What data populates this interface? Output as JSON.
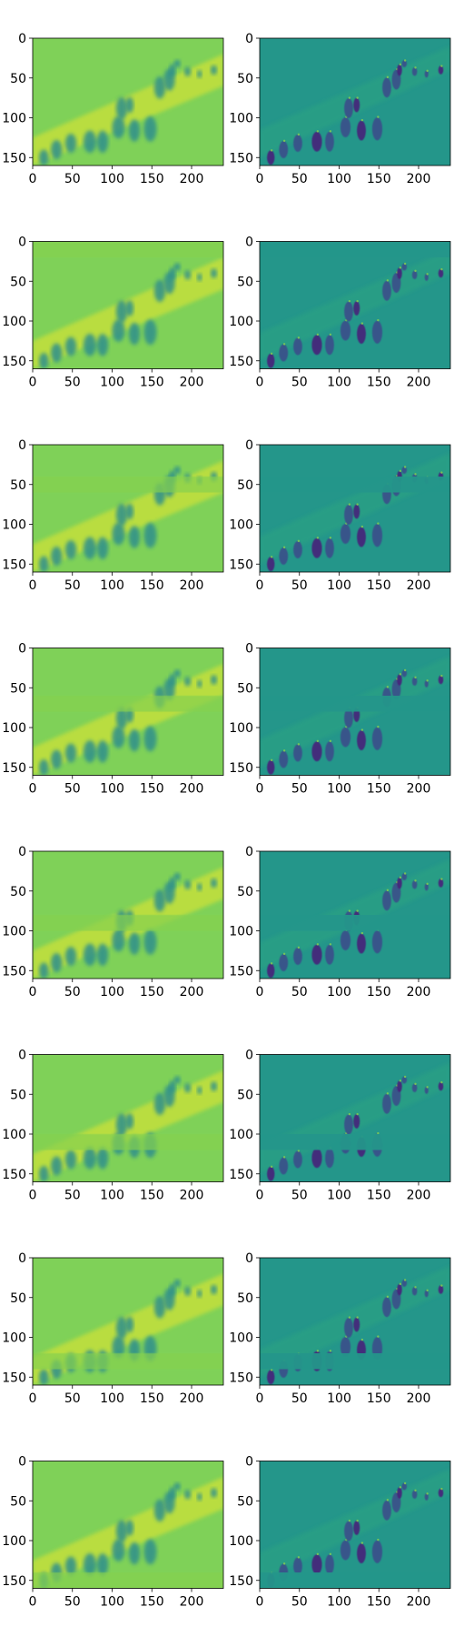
{
  "chart_data": {
    "type": "heatmap",
    "layout": "8 rows x 2 columns of image panels",
    "colormap": "viridis",
    "image_shape": [
      160,
      240
    ],
    "xlim": [
      0,
      240
    ],
    "ylim": [
      160,
      0
    ],
    "xticks": [
      0,
      50,
      100,
      150,
      200
    ],
    "yticks": [
      0,
      50,
      100,
      150
    ],
    "grid": false,
    "columns": [
      {
        "description": "smooth / blurred feature map"
      },
      {
        "description": "detailed feature map"
      }
    ],
    "rows": [
      {
        "mask_band": null
      },
      {
        "mask_band": [
          0,
          20
        ]
      },
      {
        "mask_band": [
          40,
          60
        ]
      },
      {
        "mask_band": [
          60,
          80
        ]
      },
      {
        "mask_band": [
          80,
          100
        ]
      },
      {
        "mask_band": [
          100,
          120
        ]
      },
      {
        "mask_band": [
          120,
          140
        ]
      },
      {
        "mask_band": [
          140,
          160
        ]
      }
    ]
  },
  "colors": {
    "left_background": "#7fd158",
    "left_bright": "#c8e03a",
    "left_dark": "#2f8f8c",
    "right_background": "#24968a",
    "right_dark": "#3b4f8a",
    "right_darkest": "#46247a",
    "right_light": "#8ad24f"
  }
}
